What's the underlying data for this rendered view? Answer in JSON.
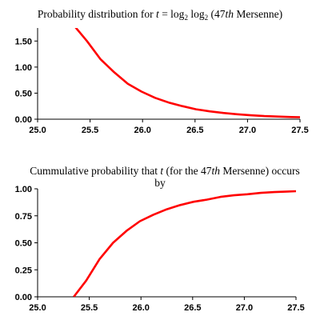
{
  "chart_data": [
    {
      "type": "line",
      "title_parts": {
        "prefix": "Probability distribution for ",
        "var": "t",
        "eq": " = log",
        "sub1": "2",
        "mid": " log",
        "sub2": "2",
        "open": " (47",
        "ordinal": "th",
        "suffix": " Mersenne)"
      },
      "xlim": [
        25.0,
        27.5
      ],
      "ylim": [
        0.0,
        1.75
      ],
      "x_ticks": [
        "25.0",
        "25.5",
        "26.0",
        "26.5",
        "27.0",
        "27.5"
      ],
      "y_ticks": [
        "0.00",
        "0.50",
        "1.00",
        "1.50"
      ],
      "y_tick_values": [
        0.0,
        0.5,
        1.0,
        1.5
      ],
      "grid": false,
      "line_color": "#ff0000",
      "series": [
        {
          "x": [
            25.35,
            25.47,
            25.6,
            25.73,
            25.86,
            25.99,
            26.12,
            26.25,
            26.38,
            26.51,
            26.64,
            26.77,
            26.9,
            27.03,
            27.16,
            27.29,
            27.42,
            27.5
          ],
          "y": [
            1.79,
            1.5,
            1.15,
            0.9,
            0.68,
            0.53,
            0.41,
            0.32,
            0.25,
            0.19,
            0.15,
            0.12,
            0.095,
            0.075,
            0.06,
            0.05,
            0.042,
            0.038
          ]
        }
      ]
    },
    {
      "type": "line",
      "title_parts": {
        "prefix": "Cummulative probability that ",
        "var": "t",
        "open": " (for the 47",
        "ordinal": "th",
        "suffix": " Mersenne) occurs",
        "line2": "by"
      },
      "xlim": [
        25.0,
        27.5
      ],
      "ylim": [
        0.0,
        1.0
      ],
      "x_ticks": [
        "25.0",
        "25.5",
        "26.0",
        "26.5",
        "27.0",
        "27.5"
      ],
      "y_ticks": [
        "0.00",
        "0.25",
        "0.50",
        "0.75",
        "1.00"
      ],
      "y_tick_values": [
        0.0,
        0.25,
        0.5,
        0.75,
        1.0
      ],
      "grid": false,
      "line_color": "#ff0000",
      "series": [
        {
          "x": [
            25.35,
            25.47,
            25.6,
            25.73,
            25.86,
            25.99,
            26.12,
            26.25,
            26.38,
            26.51,
            26.64,
            26.77,
            26.9,
            27.03,
            27.16,
            27.29,
            27.42,
            27.5
          ],
          "y": [
            0.0,
            0.15,
            0.35,
            0.5,
            0.61,
            0.7,
            0.76,
            0.81,
            0.85,
            0.88,
            0.9,
            0.925,
            0.94,
            0.95,
            0.962,
            0.97,
            0.975,
            0.978
          ]
        }
      ]
    }
  ]
}
